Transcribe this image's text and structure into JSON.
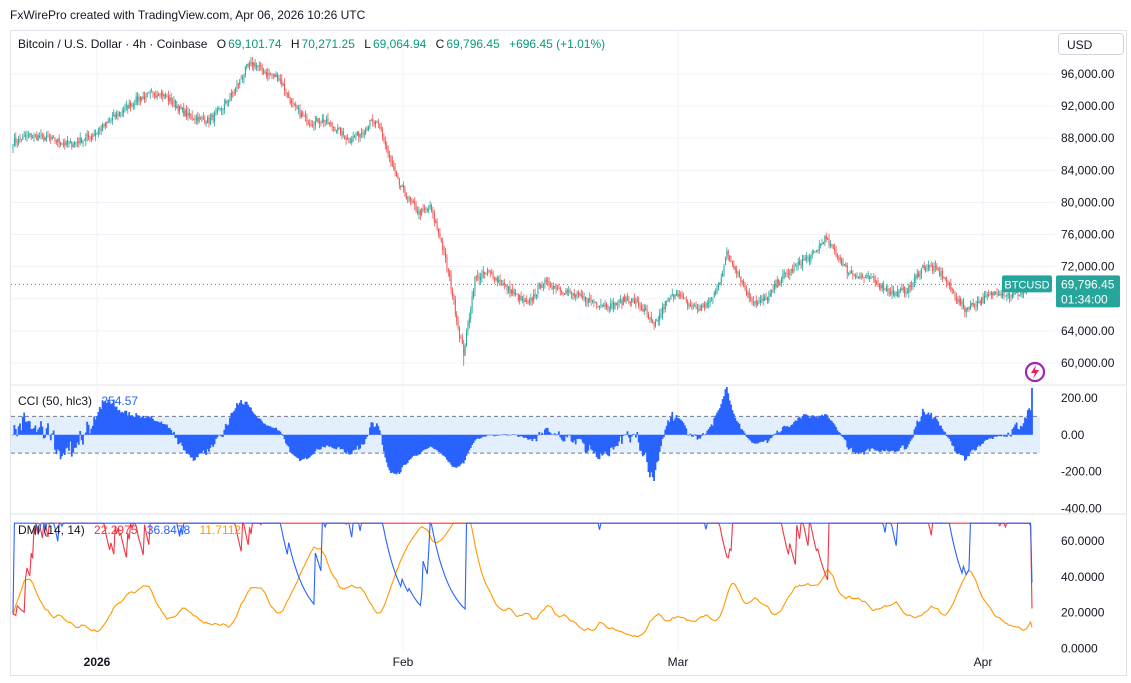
{
  "watermark": "FxWirePro created with TradingView.com, Apr 06, 2026 10:26 UTC",
  "currency_button": "USD",
  "symbol_title": "Bitcoin / U.S. Dollar · 4h · Coinbase",
  "ohlc": {
    "o_label": "O",
    "o": "69,101.74",
    "h_label": "H",
    "h": "70,271.25",
    "l_label": "L",
    "l": "69,064.94",
    "c_label": "C",
    "c": "69,796.45",
    "change": "+696.45 (+1.01%)"
  },
  "price_tag": {
    "symbol": "BTCUSD",
    "price": "69,796.45",
    "countdown": "01:34:00"
  },
  "cci_legend": {
    "name": "CCI (50, hlc3)",
    "value": "254.57"
  },
  "dmi_legend": {
    "name": "DMI (14, 14)",
    "v1": "22.2975",
    "v2": "36.8478",
    "v3": "11.7112"
  },
  "colors": {
    "up": "#26a69a",
    "down": "#ef5350",
    "cci": "#2962ff",
    "cci_band": "#e3effd",
    "dmi_pos": "#2962ff",
    "dmi_neg": "#f23645",
    "adx": "#ff9800",
    "accent": "#089981"
  },
  "chart_data": [
    {
      "type": "candlestick",
      "ylabel_ticks": [
        "60,000.00",
        "64,000.00",
        "68,000.00",
        "72,000.00",
        "76,000.00",
        "80,000.00",
        "84,000.00",
        "88,000.00",
        "92,000.00",
        "96,000.00"
      ],
      "y_values": [
        60000,
        64000,
        68000,
        72000,
        76000,
        80000,
        84000,
        88000,
        92000,
        96000
      ],
      "ylim": [
        57500,
        98000
      ],
      "x_ticks": [
        "2026",
        "Feb",
        "Mar",
        "Apr"
      ],
      "keypoints": [
        [
          0,
          87500
        ],
        [
          12,
          88300
        ],
        [
          25,
          88000
        ],
        [
          40,
          87200
        ],
        [
          55,
          88200
        ],
        [
          65,
          89500
        ],
        [
          78,
          91500
        ],
        [
          90,
          93000
        ],
        [
          105,
          93700
        ],
        [
          115,
          92300
        ],
        [
          125,
          90800
        ],
        [
          140,
          90200
        ],
        [
          150,
          91800
        ],
        [
          158,
          93800
        ],
        [
          167,
          96800
        ],
        [
          172,
          97300
        ],
        [
          182,
          96000
        ],
        [
          190,
          95600
        ],
        [
          200,
          92000
        ],
        [
          212,
          89900
        ],
        [
          222,
          90300
        ],
        [
          230,
          89300
        ],
        [
          240,
          87800
        ],
        [
          248,
          88600
        ],
        [
          256,
          90000
        ],
        [
          262,
          89500
        ],
        [
          268,
          86000
        ],
        [
          275,
          82500
        ],
        [
          282,
          80500
        ],
        [
          290,
          78700
        ],
        [
          298,
          79300
        ],
        [
          305,
          75800
        ],
        [
          312,
          70500
        ],
        [
          318,
          64500
        ],
        [
          322,
          61200
        ],
        [
          330,
          70500
        ],
        [
          340,
          71300
        ],
        [
          350,
          69800
        ],
        [
          360,
          68300
        ],
        [
          368,
          67200
        ],
        [
          378,
          70000
        ],
        [
          388,
          69500
        ],
        [
          398,
          68600
        ],
        [
          408,
          68000
        ],
        [
          418,
          67500
        ],
        [
          428,
          67100
        ],
        [
          438,
          68000
        ],
        [
          446,
          67500
        ],
        [
          452,
          66200
        ],
        [
          458,
          64400
        ],
        [
          466,
          67400
        ],
        [
          474,
          68900
        ],
        [
          482,
          67300
        ],
        [
          490,
          66700
        ],
        [
          498,
          67600
        ],
        [
          504,
          69600
        ],
        [
          510,
          73600
        ],
        [
          518,
          71300
        ],
        [
          525,
          68400
        ],
        [
          532,
          67400
        ],
        [
          540,
          68200
        ],
        [
          548,
          70500
        ],
        [
          556,
          71500
        ],
        [
          564,
          72700
        ],
        [
          572,
          73500
        ],
        [
          580,
          75500
        ],
        [
          588,
          73700
        ],
        [
          596,
          71500
        ],
        [
          604,
          70800
        ],
        [
          612,
          70500
        ],
        [
          620,
          69700
        ],
        [
          630,
          68600
        ],
        [
          640,
          69200
        ],
        [
          650,
          72000
        ],
        [
          656,
          71900
        ],
        [
          664,
          71000
        ],
        [
          672,
          68600
        ],
        [
          680,
          66700
        ],
        [
          688,
          67500
        ],
        [
          696,
          68200
        ],
        [
          704,
          69000
        ],
        [
          712,
          68400
        ],
        [
          720,
          68700
        ],
        [
          728,
          69800
        ]
      ],
      "last": {
        "open": 69101.74,
        "high": 70271.25,
        "low": 69064.94,
        "close": 69796.45
      },
      "last_price": 69796.45
    },
    {
      "type": "histogram",
      "name": "CCI (50, hlc3)",
      "ylabel_ticks": [
        "-400.00",
        "-200.00",
        "0.00",
        "200.00"
      ],
      "y_values": [
        -400,
        -200,
        0,
        200
      ],
      "bands": [
        -100,
        100
      ],
      "ylim": [
        -420,
        260
      ],
      "last": 254.57
    },
    {
      "type": "line",
      "name": "DMI (14, 14)",
      "ylabel_ticks": [
        "0.0000",
        "20.0000",
        "40.0000",
        "60.0000"
      ],
      "y_values": [
        0,
        20,
        40,
        60
      ],
      "ylim": [
        -2,
        74
      ],
      "series_last": [
        22.2975,
        36.8478,
        11.7112
      ]
    }
  ]
}
